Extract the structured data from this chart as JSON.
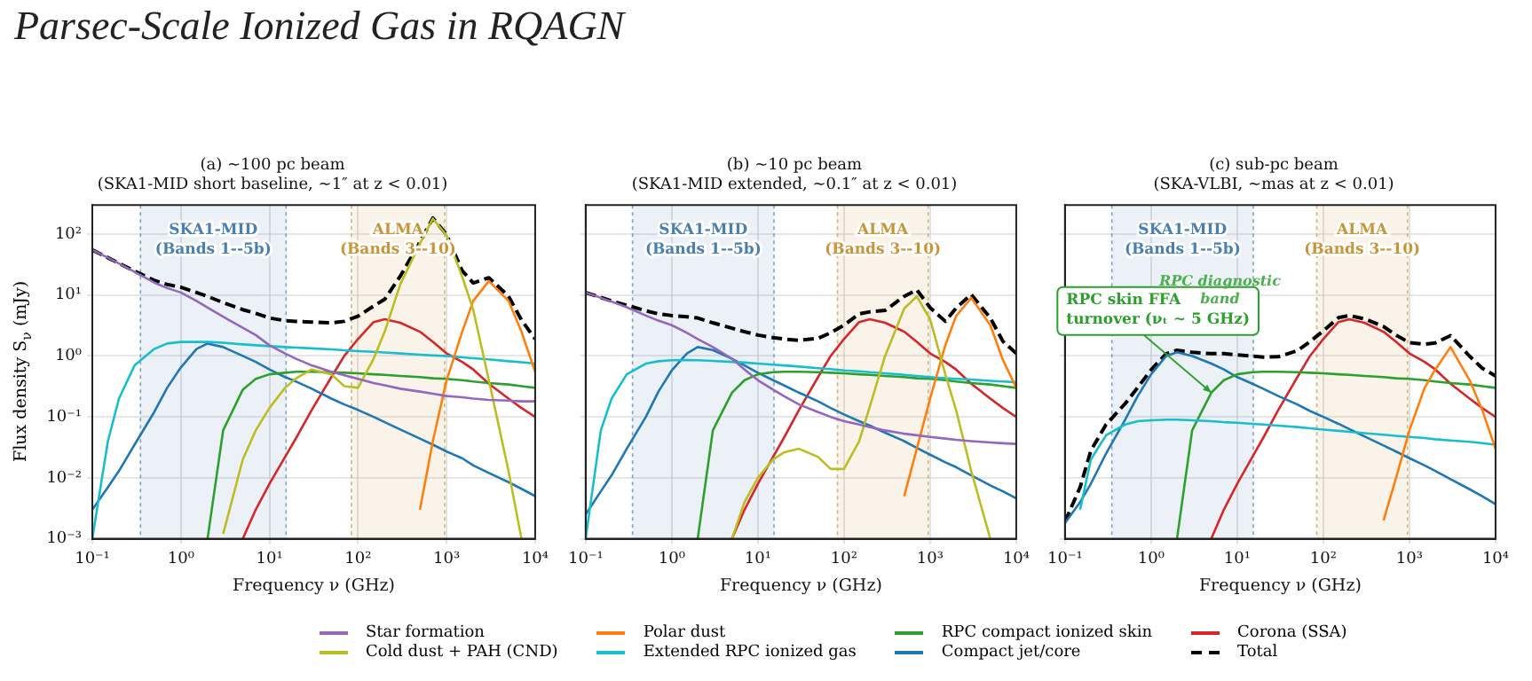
{
  "chart_data": [
    {
      "type": "line",
      "title": "(a) ~100 pc beam",
      "subtitle": "(SKA1-MID short baseline, ~1″ at z < 0.01)",
      "xlabel": "Frequency ν (GHz)",
      "ylabel": "Flux density S$_{ν}$ (mJy)",
      "log": "xy",
      "grid": true,
      "legend": "bottom",
      "annotations": [
        "Parsec-Scale Ionized Gas in RQAGN"
      ],
      "xlim": [
        0.1,
        10000
      ],
      "ylim": [
        0.001,
        300
      ],
      "xticks": [
        {
          "value": 0.1,
          "label": "10⁻¹"
        },
        {
          "value": 1,
          "label": "10⁰"
        },
        {
          "value": 10,
          "label": "10¹"
        },
        {
          "value": 100,
          "label": "10²"
        },
        {
          "value": 1000,
          "label": "10³"
        },
        {
          "value": 10000,
          "label": "10⁴"
        }
      ],
      "yticks": [
        {
          "value": 0.001,
          "label": "10⁻³"
        },
        {
          "value": 0.01,
          "label": "10⁻²"
        },
        {
          "value": 0.1,
          "label": "10⁻¹"
        },
        {
          "value": 1,
          "label": "10⁰"
        },
        {
          "value": 10,
          "label": "10¹"
        },
        {
          "value": 100,
          "label": "10²"
        }
      ],
      "bands": [
        {
          "axis": "x",
          "from": 0.35,
          "to": 15.4,
          "label": "SKA1-MID\n(Bands 1--5b)",
          "color": "#4a7fb0"
        },
        {
          "axis": "x",
          "from": 84,
          "to": 950,
          "label": "ALMA\n(Bands 3--10)",
          "color": "#c8953a"
        }
      ],
      "ref_lines": [
        {
          "axis": "x",
          "value": 0.35,
          "color": "#4a7fb0",
          "line_style": "dotted"
        },
        {
          "axis": "x",
          "value": 15.4,
          "color": "#4a7fb0",
          "line_style": "dotted"
        },
        {
          "axis": "x",
          "value": 84,
          "color": "#c8953a",
          "line_style": "dotted"
        },
        {
          "axis": "x",
          "value": 950,
          "color": "#c8953a",
          "line_style": "dotted"
        }
      ],
      "x": [
        0.1,
        0.15,
        0.2,
        0.3,
        0.5,
        0.7,
        1,
        1.5,
        2,
        3,
        5,
        7,
        10,
        15,
        20,
        30,
        50,
        70,
        100,
        150,
        200,
        300,
        500,
        700,
        1000,
        1500,
        2000,
        3000,
        5000,
        7000,
        10000
      ],
      "series": [
        {
          "name": "Star formation",
          "color": "#9467bd",
          "values": [
            55,
            41,
            33,
            24,
            16,
            13,
            11,
            8,
            6.2,
            4.4,
            2.9,
            2.2,
            1.5,
            1.1,
            0.9,
            0.7,
            0.55,
            0.48,
            0.42,
            0.36,
            0.33,
            0.29,
            0.26,
            0.24,
            0.22,
            0.21,
            0.2,
            0.19,
            0.185,
            0.18,
            0.18
          ]
        },
        {
          "name": "Cold dust + PAH (CND)",
          "color": "#bcbd22",
          "values": [
            null,
            null,
            null,
            null,
            null,
            null,
            null,
            null,
            null,
            0.0012,
            0.02,
            0.06,
            0.14,
            0.3,
            0.43,
            0.6,
            0.5,
            0.32,
            0.3,
            0.9,
            2.5,
            15,
            70,
            180,
            95,
            20,
            5.7,
            0.4,
            0.013,
            0.001,
            null
          ]
        },
        {
          "name": "Polar dust",
          "color": "#ff7f0e",
          "values": [
            null,
            null,
            null,
            null,
            null,
            null,
            null,
            null,
            null,
            null,
            null,
            null,
            null,
            null,
            null,
            null,
            null,
            null,
            null,
            null,
            null,
            null,
            0.003,
            0.04,
            0.4,
            2.5,
            8,
            17,
            8,
            2.5,
            0.55
          ]
        },
        {
          "name": "Extended RPC ionized gas",
          "color": "#17becf",
          "values": [
            0.001,
            0.04,
            0.2,
            0.7,
            1.3,
            1.6,
            1.7,
            1.7,
            1.7,
            1.65,
            1.55,
            1.5,
            1.45,
            1.4,
            1.37,
            1.33,
            1.28,
            1.24,
            1.2,
            1.17,
            1.14,
            1.1,
            1.05,
            1.02,
            1.0,
            0.95,
            0.92,
            0.88,
            0.82,
            0.79,
            0.75
          ]
        },
        {
          "name": "RPC compact ionized skin",
          "color": "#2ca02c",
          "values": [
            null,
            null,
            null,
            null,
            null,
            null,
            null,
            null,
            0.001,
            0.06,
            0.28,
            0.42,
            0.5,
            0.53,
            0.55,
            0.55,
            0.54,
            0.53,
            0.52,
            0.5,
            0.49,
            0.47,
            0.45,
            0.43,
            0.42,
            0.4,
            0.38,
            0.36,
            0.34,
            0.32,
            0.3
          ]
        },
        {
          "name": "Compact jet/core",
          "color": "#1f77b4",
          "values": [
            0.003,
            0.007,
            0.013,
            0.035,
            0.12,
            0.3,
            0.65,
            1.3,
            1.6,
            1.4,
            1.0,
            0.8,
            0.6,
            0.45,
            0.38,
            0.29,
            0.2,
            0.16,
            0.13,
            0.1,
            0.082,
            0.062,
            0.044,
            0.035,
            0.027,
            0.021,
            0.016,
            0.012,
            0.0085,
            0.0066,
            0.005
          ]
        },
        {
          "name": "Corona (SSA)",
          "color": "#d62728",
          "values": [
            null,
            null,
            null,
            null,
            null,
            null,
            null,
            null,
            null,
            null,
            0.001,
            0.003,
            0.008,
            0.022,
            0.045,
            0.13,
            0.45,
            1.0,
            1.9,
            3.6,
            4.0,
            3.5,
            2.5,
            1.7,
            1.1,
            0.8,
            0.6,
            0.35,
            0.2,
            0.14,
            0.1
          ]
        },
        {
          "name": "Total",
          "color": "#000000",
          "line_style": "dashed",
          "values": [
            55,
            41,
            33.2,
            24.7,
            17.4,
            14.9,
            13.4,
            11,
            9.5,
            7.5,
            5.75,
            5.0,
            4.2,
            3.8,
            3.7,
            3.6,
            3.5,
            3.7,
            4.5,
            6.6,
            8.5,
            20.4,
            74,
            183,
            98,
            25,
            15.8,
            19.2,
            9.6,
            3.9,
            1.9
          ]
        }
      ]
    },
    {
      "type": "line",
      "title": "(b) ~10 pc beam",
      "subtitle": "(SKA1-MID extended, ~0.1″ at z < 0.01)",
      "xlabel": "Frequency ν (GHz)",
      "log": "xy",
      "grid": true,
      "tick_labels": "x",
      "xlim": [
        0.1,
        10000
      ],
      "ylim": [
        0.001,
        300
      ],
      "xticks": [
        {
          "value": 0.1,
          "label": "10⁻¹"
        },
        {
          "value": 1,
          "label": "10⁰"
        },
        {
          "value": 10,
          "label": "10¹"
        },
        {
          "value": 100,
          "label": "10²"
        },
        {
          "value": 1000,
          "label": "10³"
        },
        {
          "value": 10000,
          "label": "10⁴"
        }
      ],
      "yticks": [
        {
          "value": 0.001,
          "label": null
        },
        {
          "value": 0.01,
          "label": null
        },
        {
          "value": 0.1,
          "label": null
        },
        {
          "value": 1,
          "label": null
        },
        {
          "value": 10,
          "label": null
        },
        {
          "value": 100,
          "label": null
        }
      ],
      "bands": [
        {
          "axis": "x",
          "from": 0.35,
          "to": 15.4,
          "label": "SKA1-MID\n(Bands 1--5b)",
          "color": "#4a7fb0"
        },
        {
          "axis": "x",
          "from": 84,
          "to": 950,
          "label": "ALMA\n(Bands 3--10)",
          "color": "#c8953a"
        }
      ],
      "ref_lines": [
        {
          "axis": "x",
          "value": 0.35,
          "color": "#4a7fb0",
          "line_style": "dotted"
        },
        {
          "axis": "x",
          "value": 15.4,
          "color": "#4a7fb0",
          "line_style": "dotted"
        },
        {
          "axis": "x",
          "value": 84,
          "color": "#c8953a",
          "line_style": "dotted"
        },
        {
          "axis": "x",
          "value": 950,
          "color": "#c8953a",
          "line_style": "dotted"
        }
      ],
      "x": [
        0.1,
        0.15,
        0.2,
        0.3,
        0.5,
        0.7,
        1,
        1.5,
        2,
        3,
        5,
        7,
        10,
        15,
        20,
        30,
        50,
        70,
        100,
        150,
        200,
        300,
        500,
        700,
        1000,
        1500,
        2000,
        3000,
        5000,
        7000,
        10000
      ],
      "series": [
        {
          "color": "#9467bd",
          "values": [
            11,
            9,
            7.8,
            6.3,
            4.6,
            3.8,
            3.2,
            2.4,
            1.9,
            1.4,
            0.9,
            0.6,
            0.4,
            0.28,
            0.22,
            0.16,
            0.12,
            0.1,
            0.085,
            0.075,
            0.068,
            0.06,
            0.053,
            0.05,
            0.047,
            0.044,
            0.042,
            0.04,
            0.038,
            0.037,
            0.036
          ]
        },
        {
          "color": "#bcbd22",
          "values": [
            null,
            null,
            null,
            null,
            null,
            null,
            null,
            null,
            null,
            null,
            0.001,
            0.004,
            0.01,
            0.02,
            0.026,
            0.03,
            0.022,
            0.014,
            0.014,
            0.04,
            0.15,
            1.0,
            6,
            9.5,
            4,
            0.5,
            0.13,
            0.013,
            0.001,
            null,
            null
          ]
        },
        {
          "color": "#ff7f0e",
          "values": [
            null,
            null,
            null,
            null,
            null,
            null,
            null,
            null,
            null,
            null,
            null,
            null,
            null,
            null,
            null,
            null,
            null,
            null,
            null,
            null,
            null,
            null,
            0.005,
            0.03,
            0.2,
            1.5,
            4.5,
            9,
            3.2,
            0.86,
            0.3
          ]
        },
        {
          "color": "#17becf",
          "values": [
            0.001,
            0.06,
            0.2,
            0.5,
            0.75,
            0.82,
            0.85,
            0.86,
            0.85,
            0.83,
            0.8,
            0.78,
            0.75,
            0.72,
            0.7,
            0.67,
            0.63,
            0.61,
            0.58,
            0.56,
            0.54,
            0.52,
            0.49,
            0.47,
            0.45,
            0.43,
            0.42,
            0.41,
            0.39,
            0.38,
            0.37
          ]
        },
        {
          "color": "#2ca02c",
          "values": [
            null,
            null,
            null,
            null,
            null,
            null,
            null,
            null,
            0.001,
            0.06,
            0.25,
            0.4,
            0.5,
            0.54,
            0.55,
            0.55,
            0.54,
            0.53,
            0.52,
            0.5,
            0.49,
            0.47,
            0.45,
            0.43,
            0.42,
            0.4,
            0.38,
            0.36,
            0.34,
            0.32,
            0.3
          ]
        },
        {
          "color": "#1f77b4",
          "values": [
            0.0025,
            0.006,
            0.011,
            0.03,
            0.1,
            0.26,
            0.58,
            1.1,
            1.4,
            1.25,
            0.9,
            0.7,
            0.53,
            0.4,
            0.33,
            0.25,
            0.18,
            0.14,
            0.11,
            0.085,
            0.072,
            0.055,
            0.04,
            0.031,
            0.024,
            0.018,
            0.015,
            0.011,
            0.0075,
            0.006,
            0.0046
          ]
        },
        {
          "color": "#d62728",
          "values": [
            null,
            null,
            null,
            null,
            null,
            null,
            null,
            null,
            null,
            null,
            0.001,
            0.003,
            0.008,
            0.022,
            0.045,
            0.13,
            0.45,
            1.0,
            1.9,
            3.6,
            4.0,
            3.5,
            2.5,
            1.7,
            1.1,
            0.8,
            0.6,
            0.35,
            0.2,
            0.14,
            0.1
          ]
        },
        {
          "color": "#000000",
          "line_style": "dashed",
          "values": [
            11,
            9.1,
            8.0,
            6.8,
            5.5,
            4.9,
            4.6,
            4.4,
            4.2,
            3.5,
            2.85,
            2.5,
            2.2,
            2.0,
            1.9,
            1.8,
            1.95,
            2.4,
            3.2,
            4.9,
            5.3,
            5.6,
            9.5,
            12.2,
            6.2,
            3.7,
            6.1,
            10.2,
            4.2,
            1.74,
            1.1
          ]
        }
      ]
    },
    {
      "type": "line",
      "title": "(c) sub-pc beam",
      "subtitle": "(SKA-VLBI, ~mas at z < 0.01)",
      "xlabel": "Frequency ν (GHz)",
      "log": "xy",
      "grid": true,
      "tick_labels": "x",
      "xlim": [
        0.1,
        10000
      ],
      "ylim": [
        0.001,
        300
      ],
      "xticks": [
        {
          "value": 0.1,
          "label": "10⁻¹"
        },
        {
          "value": 1,
          "label": "10⁰"
        },
        {
          "value": 10,
          "label": "10¹"
        },
        {
          "value": 100,
          "label": "10²"
        },
        {
          "value": 1000,
          "label": "10³"
        },
        {
          "value": 10000,
          "label": "10⁴"
        }
      ],
      "yticks": [
        {
          "value": 0.001,
          "label": null
        },
        {
          "value": 0.01,
          "label": null
        },
        {
          "value": 0.1,
          "label": null
        },
        {
          "value": 1,
          "label": null
        },
        {
          "value": 10,
          "label": null
        },
        {
          "value": 100,
          "label": null
        }
      ],
      "bands": [
        {
          "axis": "x",
          "from": 0.35,
          "to": 15.4,
          "label": "SKA1-MID\n(Bands 1--5b)",
          "color": "#4a7fb0"
        },
        {
          "axis": "x",
          "from": 84,
          "to": 950,
          "label": "ALMA\n(Bands 3--10)",
          "color": "#c8953a"
        }
      ],
      "ref_lines": [
        {
          "axis": "x",
          "value": 0.35,
          "color": "#4a7fb0",
          "line_style": "dotted"
        },
        {
          "axis": "x",
          "value": 15.4,
          "color": "#4a7fb0",
          "line_style": "dotted"
        },
        {
          "axis": "x",
          "value": 84,
          "color": "#c8953a",
          "line_style": "dotted"
        },
        {
          "axis": "x",
          "value": 950,
          "color": "#c8953a",
          "line_style": "dotted"
        }
      ],
      "annotations": [
        {
          "text": "RPC skin FFA\nturnover (νₜ ~ 5 GHz)",
          "x": 5,
          "y": 0.25
        },
        "RPC diagnostic\nband"
      ],
      "x": [
        0.1,
        0.15,
        0.2,
        0.3,
        0.5,
        0.7,
        1,
        1.5,
        2,
        3,
        5,
        7,
        10,
        15,
        20,
        30,
        50,
        70,
        100,
        150,
        200,
        300,
        500,
        700,
        1000,
        1500,
        2000,
        3000,
        5000,
        7000,
        10000
      ],
      "series": [
        {
          "color": "#ff7f0e",
          "values": [
            null,
            null,
            null,
            null,
            null,
            null,
            null,
            null,
            null,
            null,
            null,
            null,
            null,
            null,
            null,
            null,
            null,
            null,
            null,
            null,
            null,
            null,
            0.002,
            0.01,
            0.06,
            0.3,
            0.6,
            1.4,
            0.4,
            0.13,
            0.03
          ]
        },
        {
          "color": "#17becf",
          "values": [
            null,
            0.003,
            0.02,
            0.05,
            0.075,
            0.085,
            0.088,
            0.09,
            0.09,
            0.088,
            0.085,
            0.082,
            0.08,
            0.077,
            0.075,
            0.072,
            0.068,
            0.065,
            0.062,
            0.059,
            0.057,
            0.054,
            0.051,
            0.049,
            0.047,
            0.045,
            0.043,
            0.041,
            0.039,
            0.037,
            0.035
          ]
        },
        {
          "color": "#2ca02c",
          "values": [
            null,
            null,
            null,
            null,
            null,
            null,
            null,
            null,
            0.001,
            0.06,
            0.25,
            0.4,
            0.5,
            0.54,
            0.55,
            0.55,
            0.54,
            0.53,
            0.52,
            0.5,
            0.49,
            0.47,
            0.45,
            0.43,
            0.42,
            0.4,
            0.38,
            0.36,
            0.34,
            0.32,
            0.3
          ]
        },
        {
          "color": "#1f77b4",
          "values": [
            0.0018,
            0.004,
            0.008,
            0.025,
            0.09,
            0.22,
            0.5,
            1.0,
            1.15,
            1.0,
            0.75,
            0.6,
            0.45,
            0.35,
            0.29,
            0.22,
            0.16,
            0.125,
            0.1,
            0.077,
            0.063,
            0.048,
            0.034,
            0.027,
            0.021,
            0.016,
            0.013,
            0.0095,
            0.0065,
            0.005,
            0.0037
          ]
        },
        {
          "color": "#d62728",
          "values": [
            null,
            null,
            null,
            null,
            null,
            null,
            null,
            null,
            null,
            null,
            0.001,
            0.003,
            0.008,
            0.022,
            0.045,
            0.13,
            0.45,
            1.0,
            1.9,
            3.6,
            4.0,
            3.5,
            2.5,
            1.7,
            1.1,
            0.8,
            0.6,
            0.35,
            0.2,
            0.14,
            0.1
          ]
        },
        {
          "color": "#000000",
          "line_style": "dashed",
          "values": [
            0.0019,
            0.007,
            0.028,
            0.075,
            0.165,
            0.305,
            0.59,
            1.09,
            1.24,
            1.15,
            1.09,
            1.09,
            1.04,
            0.99,
            0.96,
            0.97,
            1.22,
            1.72,
            2.58,
            4.24,
            4.6,
            4.07,
            3.04,
            2.2,
            1.65,
            1.56,
            1.64,
            2.16,
            0.99,
            0.63,
            0.47
          ]
        }
      ]
    }
  ]
}
